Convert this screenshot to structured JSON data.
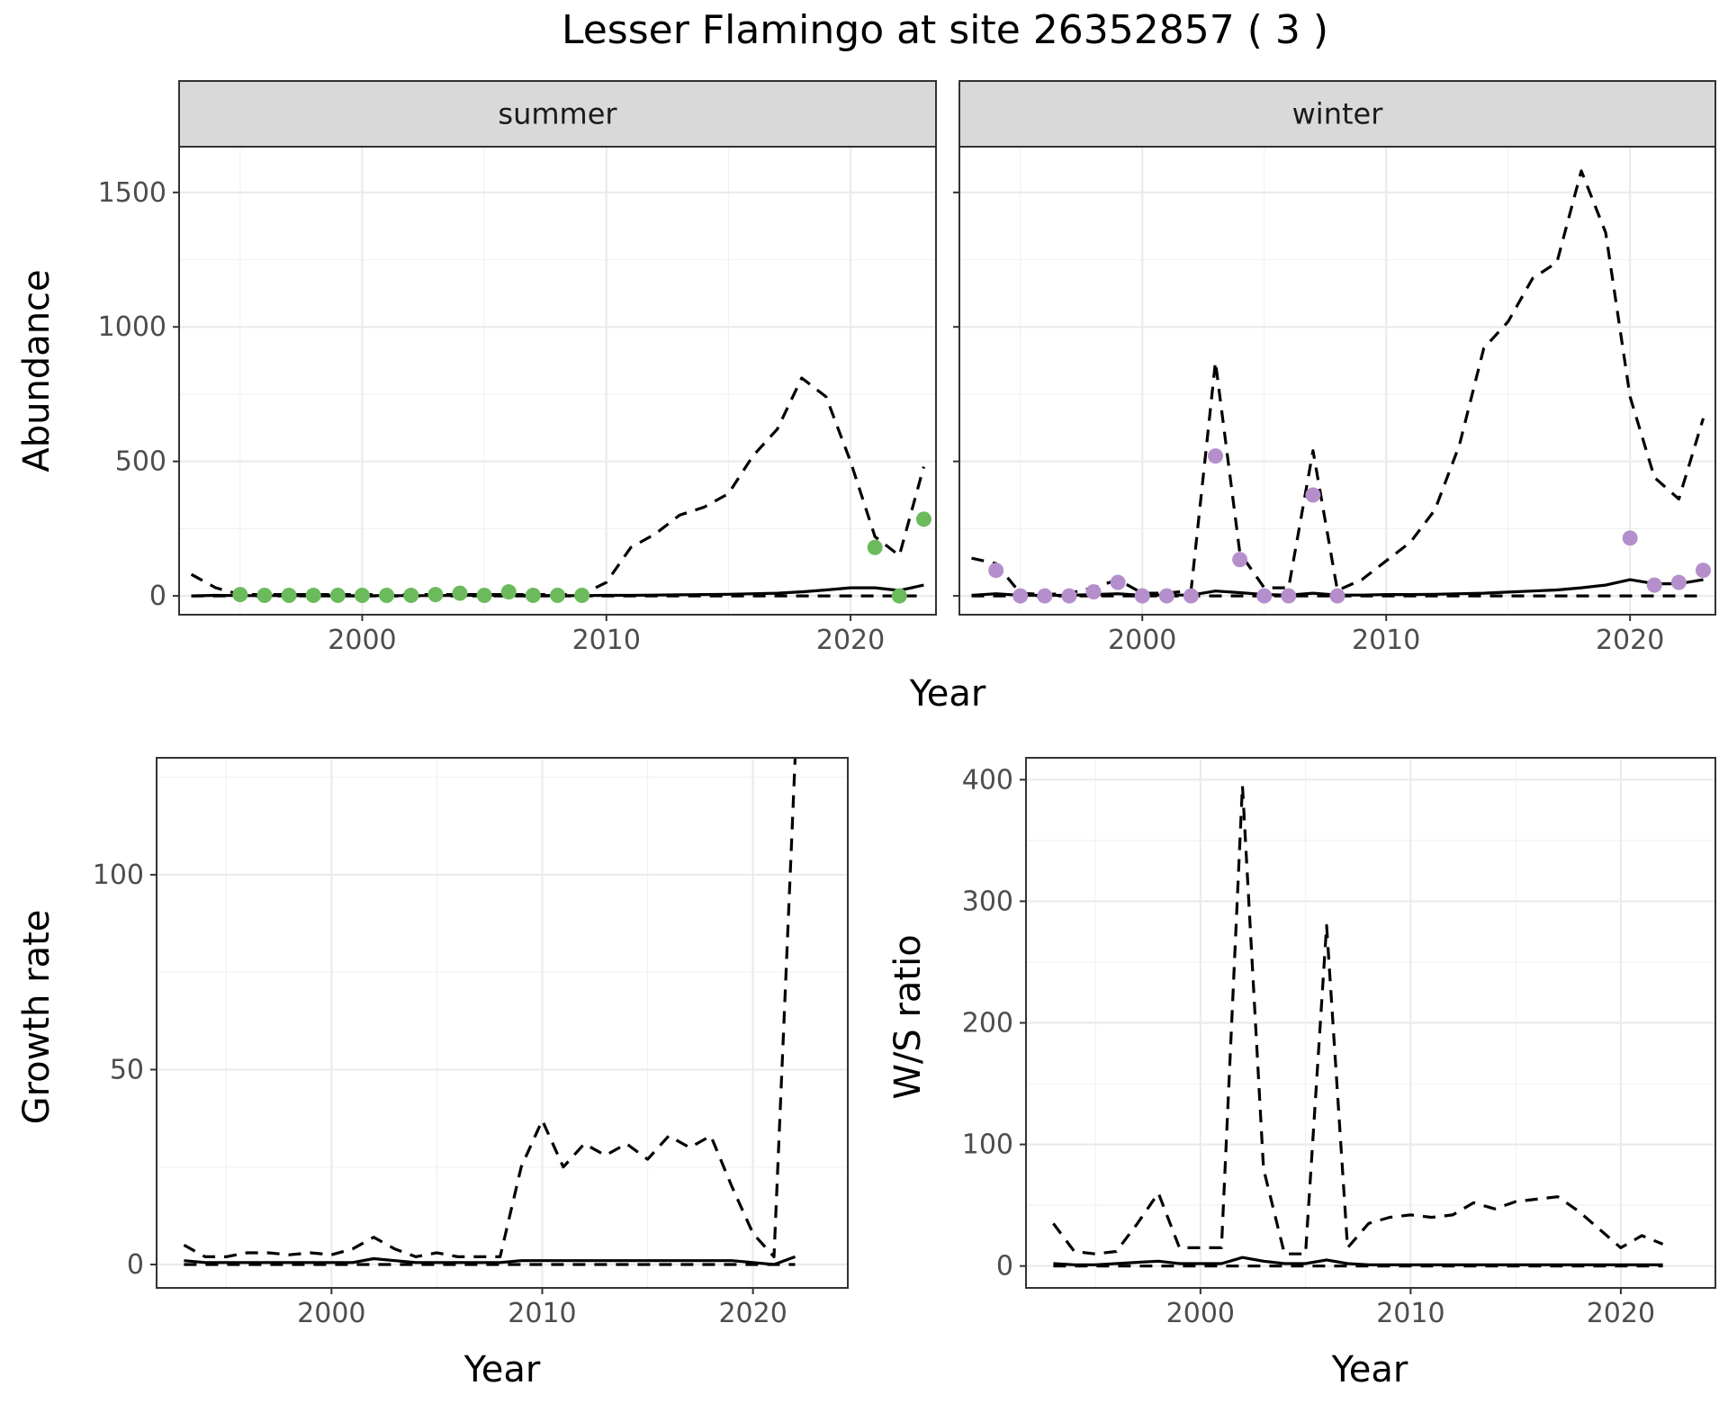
{
  "title": "Lesser Flamingo at site 26352857 ( 3 )",
  "colors": {
    "summer_points": "#6bbb5c",
    "winter_points": "#b58fcb",
    "lines": "#000000"
  },
  "chart_data": [
    {
      "type": "line",
      "facet": "summer",
      "xlabel": "Year",
      "ylabel": "Abundance",
      "xlim": [
        1992.5,
        2023.5
      ],
      "ylim": [
        -70,
        1670
      ],
      "xticks": [
        2000,
        2010,
        2020
      ],
      "yticks": [
        0,
        500,
        1000,
        1500
      ],
      "grid": true,
      "series": [
        {
          "style": "solid",
          "x": [
            1993,
            1994,
            1995,
            1996,
            1997,
            1998,
            1999,
            2000,
            2001,
            2002,
            2003,
            2004,
            2005,
            2006,
            2007,
            2008,
            2009,
            2010,
            2011,
            2012,
            2013,
            2014,
            2015,
            2016,
            2017,
            2018,
            2019,
            2020,
            2021,
            2022,
            2023
          ],
          "y": [
            0,
            2,
            1,
            1,
            1,
            1,
            1,
            1,
            1,
            1,
            1,
            2,
            2,
            2,
            2,
            1,
            1,
            2,
            2,
            3,
            4,
            5,
            6,
            8,
            10,
            15,
            22,
            30,
            30,
            20,
            40
          ]
        },
        {
          "style": "dashed",
          "x": [
            1993,
            1994,
            1995,
            1996,
            1997,
            1998,
            1999,
            2000,
            2001,
            2002,
            2003,
            2004,
            2005,
            2006,
            2007,
            2008,
            2009,
            2010,
            2011,
            2012,
            2013,
            2014,
            2015,
            2016,
            2017,
            2018,
            2019,
            2020,
            2021,
            2022,
            2023
          ],
          "y": [
            80,
            30,
            5,
            5,
            5,
            5,
            5,
            5,
            5,
            5,
            5,
            5,
            5,
            5,
            5,
            5,
            5,
            50,
            180,
            230,
            300,
            330,
            380,
            520,
            620,
            810,
            740,
            500,
            220,
            150,
            480
          ]
        },
        {
          "style": "dashed",
          "x": [
            1993,
            2023
          ],
          "y": [
            0,
            0
          ]
        },
        {
          "style": "points",
          "x": [
            1995,
            1996,
            1997,
            1998,
            1999,
            2000,
            2001,
            2002,
            2003,
            2004,
            2005,
            2006,
            2007,
            2008,
            2009,
            2021,
            2022,
            2023
          ],
          "y": [
            5,
            2,
            2,
            2,
            2,
            2,
            2,
            2,
            5,
            10,
            2,
            15,
            2,
            2,
            2,
            180,
            0,
            285
          ]
        }
      ]
    },
    {
      "type": "line",
      "facet": "winter",
      "xlabel": "Year",
      "ylabel": "Abundance",
      "xlim": [
        1992.5,
        2023.5
      ],
      "ylim": [
        -70,
        1670
      ],
      "xticks": [
        2000,
        2010,
        2020
      ],
      "yticks": [
        0,
        500,
        1000,
        1500
      ],
      "grid": true,
      "series": [
        {
          "style": "solid",
          "x": [
            1993,
            1994,
            1995,
            1996,
            1997,
            1998,
            1999,
            2000,
            2001,
            2002,
            2003,
            2004,
            2005,
            2006,
            2007,
            2008,
            2009,
            2010,
            2011,
            2012,
            2013,
            2014,
            2015,
            2016,
            2017,
            2018,
            2019,
            2020,
            2021,
            2022,
            2023
          ],
          "y": [
            2,
            8,
            2,
            2,
            2,
            5,
            8,
            2,
            3,
            3,
            18,
            12,
            5,
            3,
            10,
            3,
            3,
            5,
            5,
            6,
            8,
            10,
            14,
            18,
            22,
            30,
            40,
            60,
            45,
            45,
            60
          ]
        },
        {
          "style": "dashed",
          "x": [
            1993,
            1994,
            1995,
            1996,
            1997,
            1998,
            1999,
            2000,
            2001,
            2002,
            2003,
            2004,
            2005,
            2006,
            2007,
            2008,
            2009,
            2010,
            2011,
            2012,
            2013,
            2014,
            2015,
            2016,
            2017,
            2018,
            2019,
            2020,
            2021,
            2022,
            2023
          ],
          "y": [
            140,
            120,
            10,
            5,
            10,
            30,
            60,
            10,
            10,
            20,
            870,
            160,
            30,
            30,
            540,
            20,
            60,
            130,
            200,
            320,
            560,
            920,
            1020,
            1180,
            1240,
            1580,
            1350,
            740,
            440,
            360,
            660
          ]
        },
        {
          "style": "dashed",
          "x": [
            1993,
            2023
          ],
          "y": [
            0,
            0
          ]
        },
        {
          "style": "points",
          "x": [
            1994,
            1995,
            1996,
            1997,
            1998,
            1999,
            2000,
            2001,
            2002,
            2003,
            2004,
            2005,
            2006,
            2007,
            2008,
            2020,
            2021,
            2022,
            2023
          ],
          "y": [
            95,
            0,
            0,
            0,
            15,
            50,
            0,
            0,
            0,
            520,
            135,
            0,
            0,
            375,
            0,
            215,
            40,
            50,
            95
          ]
        }
      ]
    },
    {
      "type": "line",
      "xlabel": "Year",
      "ylabel": "Growth rate",
      "xlim": [
        1991.7,
        2024.5
      ],
      "ylim": [
        -6,
        130
      ],
      "xticks": [
        2000,
        2010,
        2020
      ],
      "yticks": [
        0,
        50,
        100
      ],
      "grid": true,
      "series": [
        {
          "style": "solid",
          "x": [
            1993,
            1994,
            1995,
            1996,
            1997,
            1998,
            1999,
            2000,
            2001,
            2002,
            2003,
            2004,
            2005,
            2006,
            2007,
            2008,
            2009,
            2010,
            2011,
            2012,
            2013,
            2014,
            2015,
            2016,
            2017,
            2018,
            2019,
            2020,
            2021,
            2022
          ],
          "y": [
            1,
            0.5,
            0.5,
            0.5,
            0.5,
            0.5,
            0.5,
            0.5,
            0.5,
            1.5,
            1,
            0.5,
            0.5,
            0.5,
            0.5,
            0.5,
            1,
            1,
            1,
            1,
            1,
            1,
            1,
            1,
            1,
            1,
            1,
            0.5,
            0,
            2
          ]
        },
        {
          "style": "dashed",
          "x": [
            1993,
            1994,
            1995,
            1996,
            1997,
            1998,
            1999,
            2000,
            2001,
            2002,
            2003,
            2004,
            2005,
            2006,
            2007,
            2008,
            2009,
            2010,
            2011,
            2012,
            2013,
            2014,
            2015,
            2016,
            2017,
            2018,
            2019,
            2020,
            2021,
            2022
          ],
          "y": [
            5,
            2,
            2,
            3,
            3,
            2.5,
            3,
            2.5,
            4,
            7,
            4,
            2,
            3,
            2,
            2,
            2,
            25,
            37,
            25,
            31,
            28,
            31,
            27,
            33,
            30,
            33,
            20,
            8,
            2,
            130
          ]
        },
        {
          "style": "dashed",
          "x": [
            1993,
            2022
          ],
          "y": [
            0,
            0
          ]
        }
      ]
    },
    {
      "type": "line",
      "xlabel": "Year",
      "ylabel": "W/S ratio",
      "xlim": [
        1991.7,
        2024.5
      ],
      "ylim": [
        -18,
        418
      ],
      "xticks": [
        2000,
        2010,
        2020
      ],
      "yticks": [
        0,
        100,
        200,
        300,
        400
      ],
      "grid": true,
      "series": [
        {
          "style": "solid",
          "x": [
            1993,
            1994,
            1995,
            1996,
            1997,
            1998,
            1999,
            2000,
            2001,
            2002,
            2003,
            2004,
            2005,
            2006,
            2007,
            2008,
            2009,
            2010,
            2011,
            2012,
            2013,
            2014,
            2015,
            2016,
            2017,
            2018,
            2019,
            2020,
            2021,
            2022
          ],
          "y": [
            2,
            1,
            1,
            2,
            3,
            4,
            2,
            2,
            2,
            7,
            4,
            2,
            2,
            5,
            2,
            1,
            1,
            1,
            1,
            1,
            1,
            1,
            1,
            1,
            1,
            1,
            1,
            1,
            1,
            1
          ]
        },
        {
          "style": "dashed",
          "x": [
            1993,
            1994,
            1995,
            1996,
            1997,
            1998,
            1999,
            2000,
            2001,
            2002,
            2003,
            2004,
            2005,
            2006,
            2007,
            2008,
            2009,
            2010,
            2011,
            2012,
            2013,
            2014,
            2015,
            2016,
            2017,
            2018,
            2019,
            2020,
            2021,
            2022
          ],
          "y": [
            35,
            12,
            10,
            12,
            35,
            60,
            15,
            15,
            15,
            395,
            80,
            10,
            10,
            280,
            15,
            35,
            40,
            42,
            40,
            42,
            52,
            47,
            53,
            55,
            57,
            45,
            30,
            15,
            25,
            18
          ]
        },
        {
          "style": "dashed",
          "x": [
            1993,
            2022
          ],
          "y": [
            0,
            0
          ]
        }
      ]
    }
  ]
}
